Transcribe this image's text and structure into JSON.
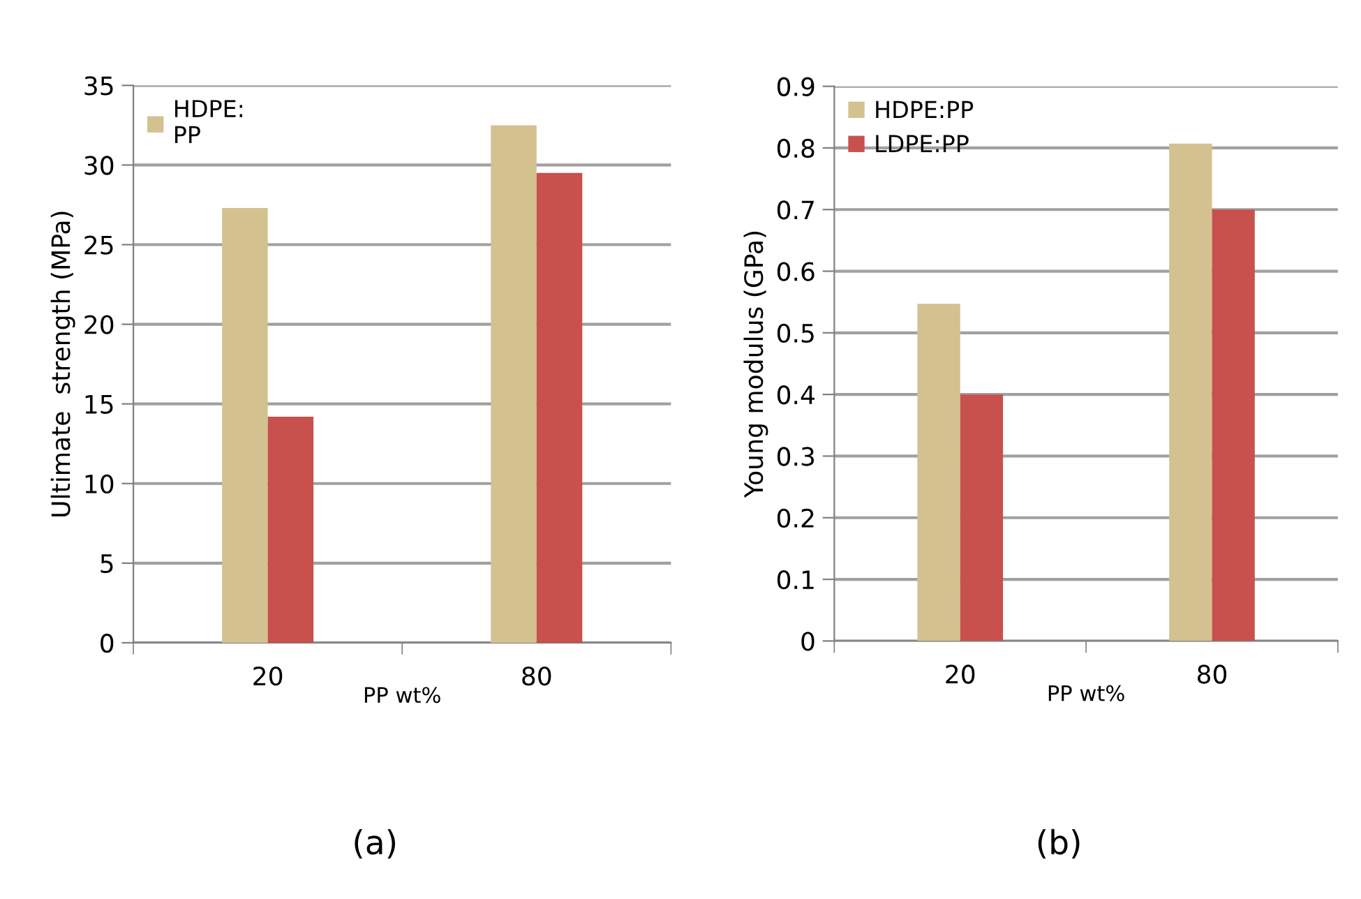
{
  "chart_data": [
    {
      "type": "bar",
      "categories": [
        "20",
        "80"
      ],
      "xlabel": "PP wt%",
      "ylabel": "Ultimate  strength (MPa)",
      "series": [
        {
          "name": "HDPE:\nPP",
          "color": "#d4c190",
          "values": [
            27.3,
            32.5
          ]
        },
        {
          "color": "#c8504d",
          "values": [
            14.2,
            29.5
          ]
        }
      ],
      "ylim": [
        0,
        35
      ],
      "yticks": [
        0,
        5,
        10,
        15,
        20,
        25,
        30,
        35
      ],
      "grid": "y",
      "legend": "top left",
      "annotations": [
        "(a)"
      ]
    },
    {
      "type": "bar",
      "categories": [
        "20",
        "80"
      ],
      "xlabel": "PP wt%",
      "ylabel": "Young modulus (GPa)",
      "series": [
        {
          "name": "HDPE:PP",
          "color": "#d4c190",
          "values": [
            0.547,
            0.807
          ]
        },
        {
          "name": "LDPE:PP",
          "color": "#c8504d",
          "values": [
            0.4,
            0.7
          ]
        }
      ],
      "ylim": [
        0,
        0.9
      ],
      "yticks": [
        0,
        0.1,
        0.2,
        0.3,
        0.4,
        0.5,
        0.6,
        0.7,
        0.8,
        0.9
      ],
      "grid": "y",
      "legend": "top left",
      "annotations": [
        "(b)"
      ]
    }
  ]
}
